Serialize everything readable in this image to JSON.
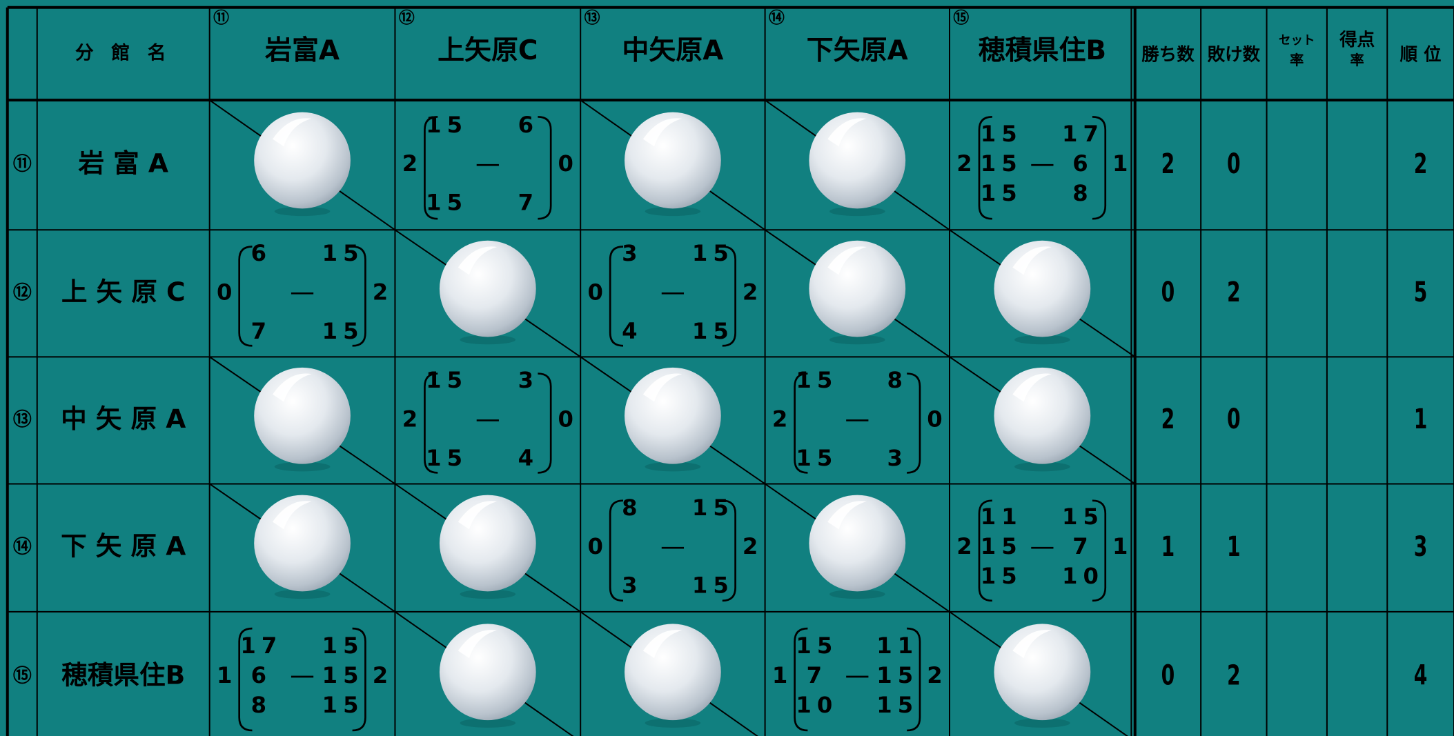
{
  "header": {
    "name": "分 館 名",
    "teams": [
      {
        "no": "⑪",
        "name": "岩富A"
      },
      {
        "no": "⑫",
        "name": "上矢原C"
      },
      {
        "no": "⑬",
        "name": "中矢原A"
      },
      {
        "no": "⑭",
        "name": "下矢原A"
      },
      {
        "no": "⑮",
        "name": "穂積県住B"
      }
    ],
    "stats": [
      [
        "勝ち数"
      ],
      [
        "敗け数"
      ],
      [
        "セット",
        "率"
      ],
      [
        "得点",
        "率"
      ],
      [
        "順 位"
      ]
    ]
  },
  "rows": [
    {
      "no": "⑪",
      "name": "岩 富 A",
      "cells": [
        null,
        {
          "left": 2,
          "sets": [
            [
              15,
              6
            ],
            [
              15,
              7
            ]
          ],
          "right": 0
        },
        null,
        null,
        {
          "left": 2,
          "sets": [
            [
              15,
              17
            ],
            [
              15,
              6
            ],
            [
              15,
              8
            ]
          ],
          "right": 1
        }
      ],
      "wins": 2,
      "losses": 0,
      "rank": 2
    },
    {
      "no": "⑫",
      "name": "上 矢 原 C",
      "cells": [
        {
          "left": 0,
          "sets": [
            [
              6,
              15
            ],
            [
              7,
              15
            ]
          ],
          "right": 2
        },
        null,
        {
          "left": 0,
          "sets": [
            [
              3,
              15
            ],
            [
              4,
              15
            ]
          ],
          "right": 2
        },
        null,
        null
      ],
      "wins": 0,
      "losses": 2,
      "rank": 5
    },
    {
      "no": "⑬",
      "name": "中 矢 原 A",
      "cells": [
        null,
        {
          "left": 2,
          "sets": [
            [
              15,
              3
            ],
            [
              15,
              4
            ]
          ],
          "right": 0
        },
        null,
        {
          "left": 2,
          "sets": [
            [
              15,
              8
            ],
            [
              15,
              3
            ]
          ],
          "right": 0
        },
        null
      ],
      "wins": 2,
      "losses": 0,
      "rank": 1
    },
    {
      "no": "⑭",
      "name": "下 矢 原 A",
      "cells": [
        null,
        null,
        {
          "left": 0,
          "sets": [
            [
              8,
              15
            ],
            [
              3,
              15
            ]
          ],
          "right": 2
        },
        null,
        {
          "left": 2,
          "sets": [
            [
              11,
              15
            ],
            [
              15,
              7
            ],
            [
              15,
              10
            ]
          ],
          "right": 1
        }
      ],
      "wins": 1,
      "losses": 1,
      "rank": 3
    },
    {
      "no": "⑮",
      "name": "穂積県住B",
      "cells": [
        {
          "left": 1,
          "sets": [
            [
              17,
              15
            ],
            [
              6,
              15
            ],
            [
              8,
              15
            ]
          ],
          "right": 2
        },
        null,
        null,
        {
          "left": 1,
          "sets": [
            [
              15,
              11
            ],
            [
              7,
              15
            ],
            [
              10,
              15
            ]
          ],
          "right": 2
        },
        null
      ],
      "wins": 0,
      "losses": 2,
      "rank": 4
    }
  ]
}
